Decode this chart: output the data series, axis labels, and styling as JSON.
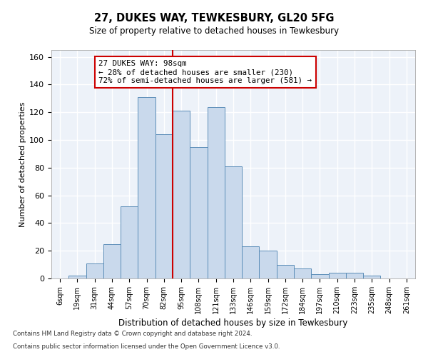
{
  "title1": "27, DUKES WAY, TEWKESBURY, GL20 5FG",
  "title2": "Size of property relative to detached houses in Tewkesbury",
  "xlabel": "Distribution of detached houses by size in Tewkesbury",
  "ylabel": "Number of detached properties",
  "bar_color": "#c9d9ec",
  "bar_edge_color": "#5b8db8",
  "background_color": "#edf2f9",
  "grid_color": "#ffffff",
  "categories": [
    "6sqm",
    "19sqm",
    "31sqm",
    "44sqm",
    "57sqm",
    "70sqm",
    "82sqm",
    "95sqm",
    "108sqm",
    "121sqm",
    "133sqm",
    "146sqm",
    "159sqm",
    "172sqm",
    "184sqm",
    "197sqm",
    "210sqm",
    "223sqm",
    "235sqm",
    "248sqm",
    "261sqm"
  ],
  "values": [
    0,
    2,
    11,
    25,
    52,
    131,
    104,
    121,
    95,
    124,
    81,
    23,
    20,
    10,
    7,
    3,
    4,
    4,
    2,
    0,
    0
  ],
  "ylim": [
    0,
    165
  ],
  "yticks": [
    0,
    20,
    40,
    60,
    80,
    100,
    120,
    140,
    160
  ],
  "red_line_x": 6.5,
  "annotation_text": "27 DUKES WAY: 98sqm\n← 28% of detached houses are smaller (230)\n72% of semi-detached houses are larger (581) →",
  "annotation_box_color": "#ffffff",
  "annotation_box_edge": "#cc0000",
  "footnote1": "Contains HM Land Registry data © Crown copyright and database right 2024.",
  "footnote2": "Contains public sector information licensed under the Open Government Licence v3.0."
}
